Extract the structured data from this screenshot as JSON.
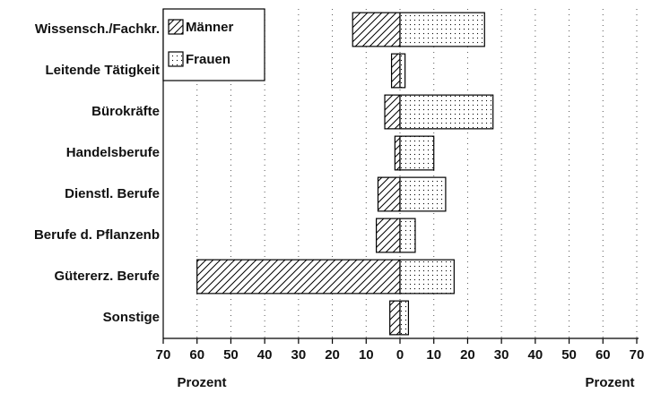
{
  "chart_data": {
    "type": "diverging-bar",
    "categories": [
      "Wissensch./Fachkr.",
      "Leitende Tätigkeit",
      "Bürokräfte",
      "Handelsberufe",
      "Dienstl. Berufe",
      "Berufe d. Pflanzenb",
      "Gütererz. Berufe",
      "Sonstige"
    ],
    "series": [
      {
        "name": "Männer",
        "color": "#000000",
        "pattern": "hatch",
        "values": [
          -14,
          -2.5,
          -4.5,
          -1.5,
          -6.5,
          -7,
          -60,
          -3
        ]
      },
      {
        "name": "Frauen",
        "color": "#000000",
        "pattern": "dots",
        "values": [
          25,
          1.5,
          27.5,
          10,
          13.5,
          4.5,
          16,
          2.5
        ]
      }
    ],
    "xlim": [
      -70,
      70
    ],
    "xticks": [
      {
        "value": -70,
        "label": "70"
      },
      {
        "value": -60,
        "label": "60"
      },
      {
        "value": -50,
        "label": "50"
      },
      {
        "value": -40,
        "label": "40"
      },
      {
        "value": -30,
        "label": "30"
      },
      {
        "value": -20,
        "label": "20"
      },
      {
        "value": -10,
        "label": "10"
      },
      0,
      10,
      20,
      30,
      40,
      50,
      60,
      70
    ],
    "x_label": "Prozent",
    "grid": true,
    "legend": "upper left"
  }
}
